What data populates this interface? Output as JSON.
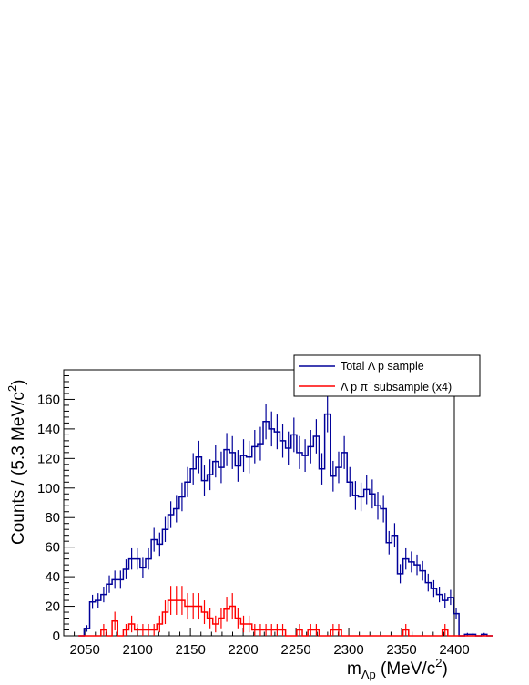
{
  "chart_data": {
    "type": "histogram",
    "xlabel_main": "m",
    "xlabel_sub": "Λp",
    "xlabel_unit_prefix": " (MeV/c",
    "xlabel_unit_sup": "2",
    "xlabel_unit_suffix": ")",
    "ylabel_main": "Counts / (5.3 MeV/c",
    "ylabel_sup": "2",
    "ylabel_suffix": ")",
    "xlim": [
      2030,
      2400
    ],
    "ylim": [
      0,
      180
    ],
    "x_ticks": [
      2050,
      2100,
      2150,
      2200,
      2250,
      2300,
      2350,
      2400
    ],
    "y_ticks": [
      0,
      20,
      40,
      60,
      80,
      100,
      120,
      140,
      160
    ],
    "bin_width": 5.3,
    "legend": {
      "placement": "top-right",
      "entries": [
        {
          "label": "Total Λ p sample",
          "color": "#000099"
        },
        {
          "label_main": "Λ p π",
          "label_sup": "-",
          "label_suffix": " subsample (x4)",
          "color": "#ff0000"
        }
      ]
    },
    "series": [
      {
        "color": "#000099",
        "x_start": 2044,
        "values": [
          0,
          5,
          23,
          24,
          28,
          35,
          38,
          38,
          45,
          52,
          52,
          46,
          52,
          65,
          62,
          72,
          82,
          86,
          94,
          104,
          113,
          121,
          105,
          109,
          118,
          114,
          126,
          124,
          115,
          122,
          121,
          128,
          130,
          145,
          140,
          138,
          132,
          127,
          136,
          124,
          122,
          128,
          135,
          113,
          150,
          108,
          114,
          124,
          104,
          95,
          94,
          99,
          96,
          88,
          86,
          63,
          68,
          42,
          52,
          50,
          48,
          44,
          36,
          32,
          28,
          24,
          26,
          15,
          0,
          1,
          1,
          0,
          1,
          0
        ]
      },
      {
        "color": "#ff0000",
        "x_start": 2044,
        "values": [
          0,
          0,
          0,
          0,
          4,
          0,
          10,
          0,
          4,
          8,
          4,
          4,
          4,
          4,
          8,
          16,
          24,
          24,
          24,
          20,
          20,
          20,
          16,
          12,
          8,
          12,
          18,
          20,
          12,
          8,
          8,
          4,
          4,
          4,
          4,
          4,
          4,
          0,
          0,
          4,
          0,
          4,
          4,
          0,
          0,
          4,
          4,
          0,
          0,
          0,
          0,
          0,
          0,
          0,
          0,
          0,
          0,
          0,
          4,
          0,
          0,
          0,
          0,
          0,
          0,
          4,
          0,
          0,
          0,
          0,
          0,
          0,
          0,
          0
        ]
      }
    ]
  }
}
